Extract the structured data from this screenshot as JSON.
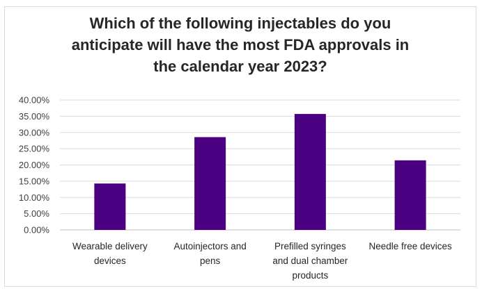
{
  "chart_data": {
    "type": "bar",
    "title_lines": [
      "Which of the following injectables do you",
      "anticipate will have the most FDA approvals in",
      "the calendar year 2023?"
    ],
    "categories": [
      [
        "Wearable delivery",
        "devices"
      ],
      [
        "Autoinjectors and",
        "pens"
      ],
      [
        "Prefilled syringes",
        "and dual chamber",
        "products"
      ],
      [
        "Needle free devices"
      ]
    ],
    "values": [
      14.29,
      28.57,
      35.71,
      21.43
    ],
    "ylim": [
      0,
      40
    ],
    "y_ticks": [
      "0.00%",
      "5.00%",
      "10.00%",
      "15.00%",
      "20.00%",
      "25.00%",
      "30.00%",
      "35.00%",
      "40.00%"
    ],
    "bar_color": "#4b0082",
    "grid": true,
    "legend": "none"
  }
}
